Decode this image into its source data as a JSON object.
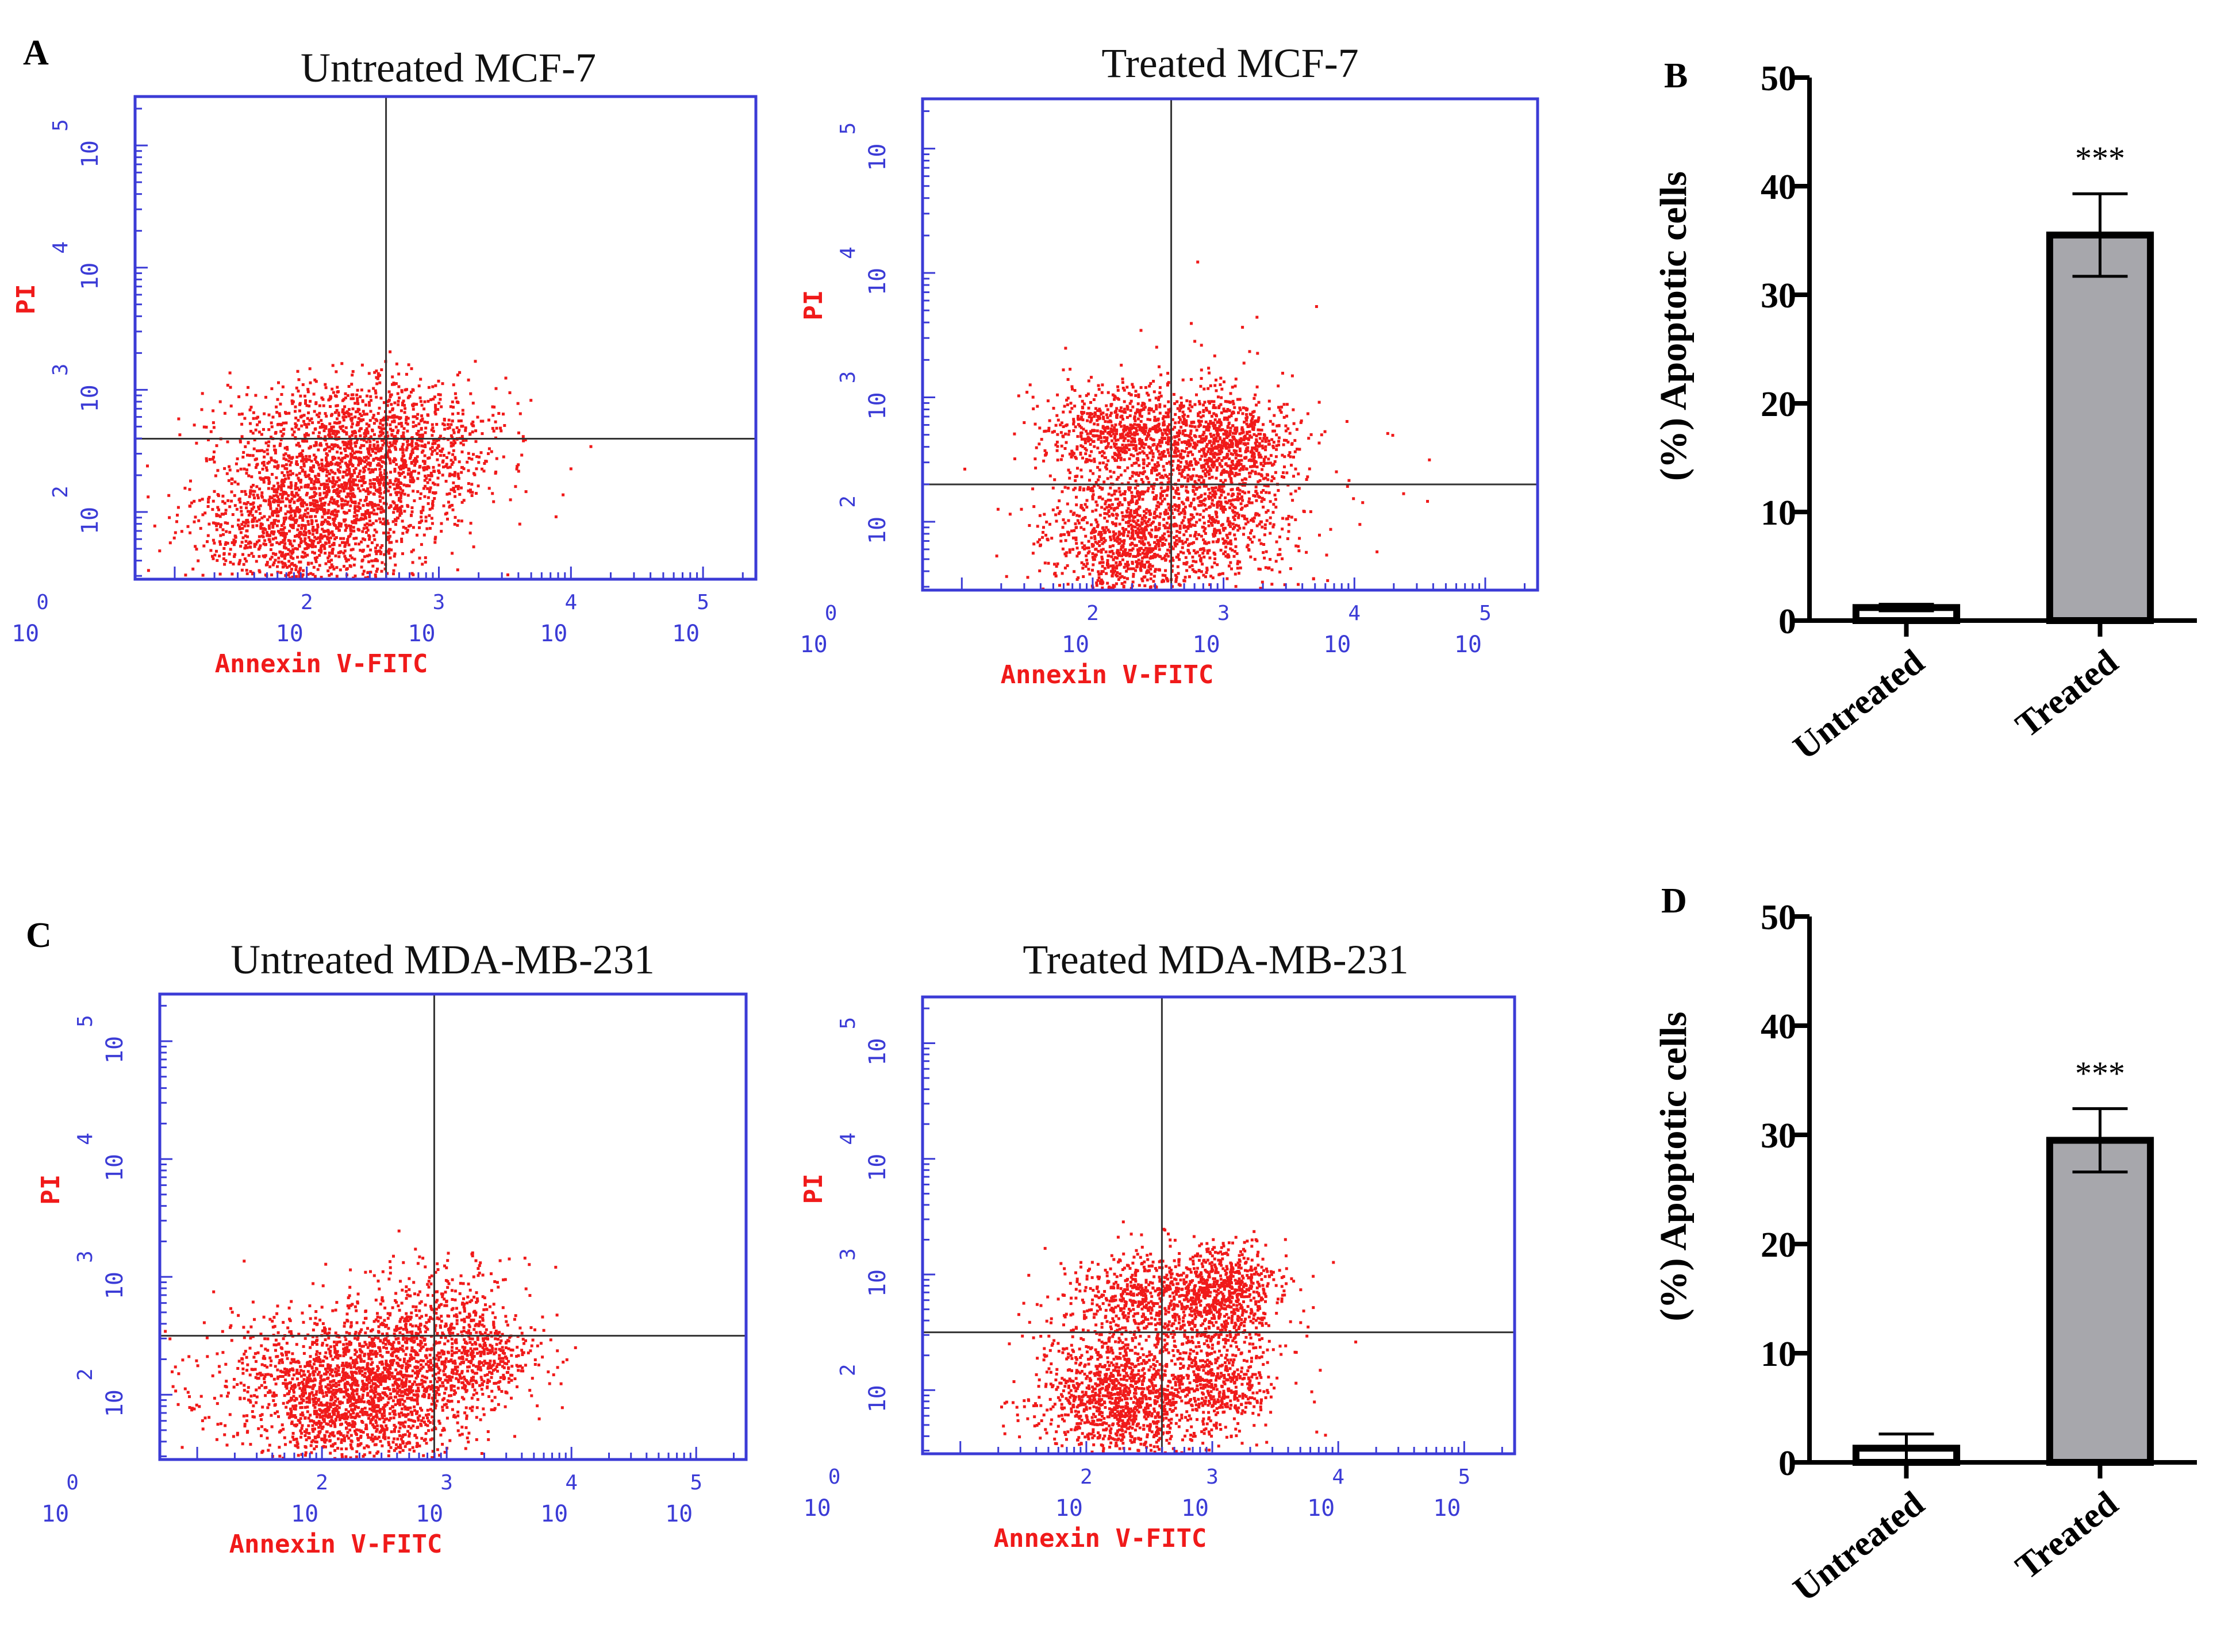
{
  "panel_labels": [
    "A",
    "B",
    "C",
    "D"
  ],
  "chart_data": [
    {
      "id": "flow-untreated-mcf7",
      "type": "scatter",
      "title": "Untreated MCF-7",
      "xlabel": "Annexin V-FITC",
      "ylabel": "PI",
      "x_ticks": [
        {
          "base": "10",
          "exp": "0"
        },
        {
          "base": "10",
          "exp": "2"
        },
        {
          "base": "10",
          "exp": "3"
        },
        {
          "base": "10",
          "exp": "4"
        },
        {
          "base": "10",
          "exp": "5"
        }
      ],
      "y_ticks": [
        {
          "base": "10",
          "exp": "2"
        },
        {
          "base": "10",
          "exp": "3"
        },
        {
          "base": "10",
          "exp": "4"
        },
        {
          "base": "10",
          "exp": "5"
        }
      ],
      "xlim": [
        0.7,
        5.4
      ],
      "ylim": [
        1.45,
        5.4
      ],
      "gate": {
        "x": 2.6,
        "y": 2.6
      },
      "clusters": [
        {
          "cx": 2.0,
          "cy": 1.95,
          "sx": 0.42,
          "sy": 0.33,
          "n": 1500
        },
        {
          "cx": 2.55,
          "cy": 2.35,
          "sx": 0.42,
          "sy": 0.28,
          "n": 700
        },
        {
          "cx": 2.3,
          "cy": 2.75,
          "sx": 0.48,
          "sy": 0.2,
          "n": 500
        },
        {
          "cx": 3.0,
          "cy": 2.6,
          "sx": 0.25,
          "sy": 0.22,
          "n": 200
        }
      ]
    },
    {
      "id": "flow-treated-mcf7",
      "type": "scatter",
      "title": "Treated MCF-7",
      "xlabel": "Annexin V-FITC",
      "ylabel": "PI",
      "x_ticks": [
        {
          "base": "10",
          "exp": "0"
        },
        {
          "base": "10",
          "exp": "2"
        },
        {
          "base": "10",
          "exp": "3"
        },
        {
          "base": "10",
          "exp": "4"
        },
        {
          "base": "10",
          "exp": "5"
        }
      ],
      "y_ticks": [
        {
          "base": "10",
          "exp": "2"
        },
        {
          "base": "10",
          "exp": "3"
        },
        {
          "base": "10",
          "exp": "4"
        },
        {
          "base": "10",
          "exp": "5"
        }
      ],
      "xlim": [
        0.7,
        5.4
      ],
      "ylim": [
        1.45,
        5.4
      ],
      "gate": {
        "x": 2.6,
        "y": 2.3
      },
      "clusters": [
        {
          "cx": 2.25,
          "cy": 1.85,
          "sx": 0.3,
          "sy": 0.28,
          "n": 900
        },
        {
          "cx": 2.25,
          "cy": 2.75,
          "sx": 0.32,
          "sy": 0.18,
          "n": 650
        },
        {
          "cx": 3.0,
          "cy": 2.65,
          "sx": 0.25,
          "sy": 0.18,
          "n": 650
        },
        {
          "cx": 3.0,
          "cy": 2.05,
          "sx": 0.25,
          "sy": 0.25,
          "n": 400
        },
        {
          "cx": 2.7,
          "cy": 2.3,
          "sx": 0.55,
          "sy": 0.45,
          "n": 500
        }
      ]
    },
    {
      "id": "bar-mcf7",
      "type": "bar",
      "ylabel": "(%) Apoptotic cells",
      "categories": [
        "Untreated",
        "Treated"
      ],
      "values": [
        1.2,
        35.5
      ],
      "errors": [
        0.3,
        3.8
      ],
      "significance": [
        "",
        "***"
      ],
      "ylim": [
        0,
        50
      ],
      "yticks": [
        0,
        10,
        20,
        30,
        40,
        50
      ],
      "colors": [
        "#ffffff",
        "#a7a7ac"
      ]
    },
    {
      "id": "flow-untreated-mda",
      "type": "scatter",
      "title": "Untreated MDA-MB-231",
      "xlabel": "Annexin V-FITC",
      "ylabel": "PI",
      "x_ticks": [
        {
          "base": "10",
          "exp": "0"
        },
        {
          "base": "10",
          "exp": "2"
        },
        {
          "base": "10",
          "exp": "3"
        },
        {
          "base": "10",
          "exp": "4"
        },
        {
          "base": "10",
          "exp": "5"
        }
      ],
      "y_ticks": [
        {
          "base": "10",
          "exp": "2"
        },
        {
          "base": "10",
          "exp": "3"
        },
        {
          "base": "10",
          "exp": "4"
        },
        {
          "base": "10",
          "exp": "5"
        }
      ],
      "xlim": [
        0.7,
        5.4
      ],
      "ylim": [
        1.45,
        5.4
      ],
      "gate": {
        "x": 2.9,
        "y": 2.5
      },
      "clusters": [
        {
          "cx": 2.3,
          "cy": 2.0,
          "sx": 0.42,
          "sy": 0.3,
          "n": 1700
        },
        {
          "cx": 2.9,
          "cy": 2.55,
          "sx": 0.35,
          "sy": 0.28,
          "n": 600
        },
        {
          "cx": 3.3,
          "cy": 2.3,
          "sx": 0.25,
          "sy": 0.22,
          "n": 250
        },
        {
          "cx": 1.6,
          "cy": 2.1,
          "sx": 0.45,
          "sy": 0.35,
          "n": 300
        }
      ]
    },
    {
      "id": "flow-treated-mda",
      "type": "scatter",
      "title": "Treated MDA-MB-231",
      "xlabel": "Annexin V-FITC",
      "ylabel": "PI",
      "x_ticks": [
        {
          "base": "10",
          "exp": "0"
        },
        {
          "base": "10",
          "exp": "2"
        },
        {
          "base": "10",
          "exp": "3"
        },
        {
          "base": "10",
          "exp": "4"
        },
        {
          "base": "10",
          "exp": "5"
        }
      ],
      "y_ticks": [
        {
          "base": "10",
          "exp": "2"
        },
        {
          "base": "10",
          "exp": "3"
        },
        {
          "base": "10",
          "exp": "4"
        },
        {
          "base": "10",
          "exp": "5"
        }
      ],
      "xlim": [
        0.7,
        5.4
      ],
      "ylim": [
        1.45,
        5.4
      ],
      "gate": {
        "x": 2.6,
        "y": 2.5
      },
      "clusters": [
        {
          "cx": 2.25,
          "cy": 1.95,
          "sx": 0.32,
          "sy": 0.28,
          "n": 1100
        },
        {
          "cx": 2.4,
          "cy": 2.8,
          "sx": 0.3,
          "sy": 0.18,
          "n": 450
        },
        {
          "cx": 3.1,
          "cy": 2.85,
          "sx": 0.22,
          "sy": 0.2,
          "n": 650
        },
        {
          "cx": 3.05,
          "cy": 2.05,
          "sx": 0.2,
          "sy": 0.18,
          "n": 350
        },
        {
          "cx": 2.7,
          "cy": 2.4,
          "sx": 0.5,
          "sy": 0.45,
          "n": 400
        }
      ]
    },
    {
      "id": "bar-mda",
      "type": "bar",
      "ylabel": "(%) Apoptotic cells",
      "categories": [
        "Untreated",
        "Treated"
      ],
      "values": [
        1.3,
        29.5
      ],
      "errors": [
        1.3,
        2.9
      ],
      "significance": [
        "",
        "***"
      ],
      "ylim": [
        0,
        50
      ],
      "yticks": [
        0,
        10,
        20,
        30,
        40,
        50
      ],
      "colors": [
        "#ffffff",
        "#a7a7ac"
      ]
    }
  ]
}
